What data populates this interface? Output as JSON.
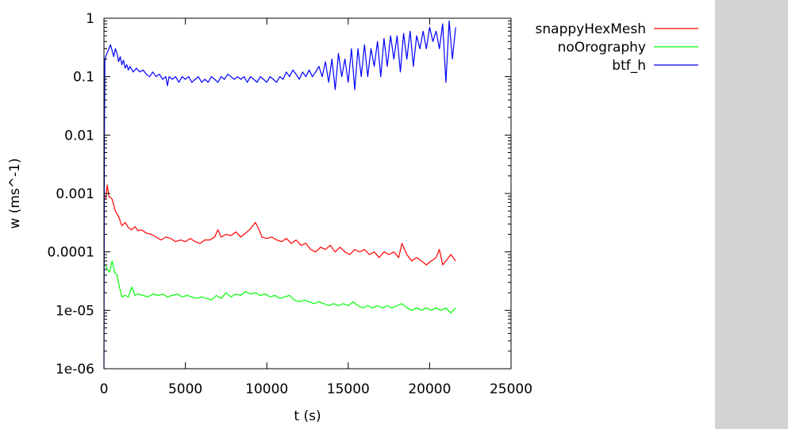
{
  "chart_data": {
    "type": "line",
    "title": "",
    "xlabel": "t (s)",
    "ylabel": "w (ms^-1)",
    "x_range": [
      0,
      25000
    ],
    "y_range": [
      1e-06,
      1
    ],
    "y_scale": "log",
    "grid": false,
    "legend_position": "top-right outside plot",
    "x_ticks": [
      {
        "value": 0,
        "label": "0"
      },
      {
        "value": 5000,
        "label": "5000"
      },
      {
        "value": 10000,
        "label": "10000"
      },
      {
        "value": 15000,
        "label": "15000"
      },
      {
        "value": 20000,
        "label": "20000"
      },
      {
        "value": 25000,
        "label": "25000"
      }
    ],
    "y_ticks": [
      {
        "value": 1,
        "label": "1"
      },
      {
        "value": 0.1,
        "label": "0.1"
      },
      {
        "value": 0.01,
        "label": "0.01"
      },
      {
        "value": 0.001,
        "label": "0.001"
      },
      {
        "value": 0.0001,
        "label": "0.0001"
      },
      {
        "value": 1e-05,
        "label": "1e-05"
      },
      {
        "value": 1e-06,
        "label": "1e-06"
      }
    ],
    "series": [
      {
        "name": "snappyHexMesh",
        "color": "#ff0000",
        "points": [
          [
            100,
            0.0008
          ],
          [
            200,
            0.0014
          ],
          [
            300,
            0.0009
          ],
          [
            500,
            0.0008
          ],
          [
            700,
            0.0005
          ],
          [
            900,
            0.0004
          ],
          [
            1100,
            0.00028
          ],
          [
            1300,
            0.00032
          ],
          [
            1500,
            0.00026
          ],
          [
            1700,
            0.00024
          ],
          [
            1900,
            0.00027
          ],
          [
            2100,
            0.00023
          ],
          [
            2300,
            0.00024
          ],
          [
            2600,
            0.00021
          ],
          [
            2900,
            0.0002
          ],
          [
            3200,
            0.00018
          ],
          [
            3500,
            0.00016
          ],
          [
            3800,
            0.00018
          ],
          [
            4100,
            0.00017
          ],
          [
            4400,
            0.00015
          ],
          [
            4700,
            0.00016
          ],
          [
            5000,
            0.00015
          ],
          [
            5300,
            0.00017
          ],
          [
            5600,
            0.00015
          ],
          [
            5900,
            0.00014
          ],
          [
            6200,
            0.00016
          ],
          [
            6500,
            0.00016
          ],
          [
            6800,
            0.00018
          ],
          [
            7000,
            0.00024
          ],
          [
            7200,
            0.00018
          ],
          [
            7500,
            0.0002
          ],
          [
            7800,
            0.00019
          ],
          [
            8100,
            0.00022
          ],
          [
            8400,
            0.00018
          ],
          [
            8700,
            0.00021
          ],
          [
            9000,
            0.00025
          ],
          [
            9300,
            0.00032
          ],
          [
            9500,
            0.00025
          ],
          [
            9700,
            0.00018
          ],
          [
            10000,
            0.00017
          ],
          [
            10300,
            0.00018
          ],
          [
            10600,
            0.00016
          ],
          [
            10900,
            0.00015
          ],
          [
            11200,
            0.00017
          ],
          [
            11500,
            0.00014
          ],
          [
            11800,
            0.00016
          ],
          [
            12100,
            0.00013
          ],
          [
            12400,
            0.00014
          ],
          [
            12700,
            0.00011
          ],
          [
            13000,
            0.0001
          ],
          [
            13300,
            0.00012
          ],
          [
            13600,
            0.00011
          ],
          [
            13900,
            0.00013
          ],
          [
            14200,
            0.0001
          ],
          [
            14500,
            0.00012
          ],
          [
            14800,
            0.0001
          ],
          [
            15100,
            9e-05
          ],
          [
            15400,
            0.00011
          ],
          [
            15700,
            0.0001
          ],
          [
            16000,
            0.00011
          ],
          [
            16300,
            9e-05
          ],
          [
            16600,
            0.0001
          ],
          [
            16900,
            8e-05
          ],
          [
            17200,
            0.0001
          ],
          [
            17500,
            9e-05
          ],
          [
            17800,
            0.0001
          ],
          [
            18100,
            8e-05
          ],
          [
            18300,
            0.00014
          ],
          [
            18600,
            9e-05
          ],
          [
            18900,
            7e-05
          ],
          [
            19200,
            8e-05
          ],
          [
            19500,
            7e-05
          ],
          [
            19800,
            6e-05
          ],
          [
            20100,
            7e-05
          ],
          [
            20400,
            8e-05
          ],
          [
            20600,
            0.00011
          ],
          [
            20800,
            6e-05
          ],
          [
            21000,
            7e-05
          ],
          [
            21300,
            9e-05
          ],
          [
            21600,
            7e-05
          ]
        ]
      },
      {
        "name": "noOrography",
        "color": "#00ff00",
        "points": [
          [
            100,
            6e-05
          ],
          [
            200,
            5e-05
          ],
          [
            350,
            4.5e-05
          ],
          [
            500,
            7e-05
          ],
          [
            650,
            4.5e-05
          ],
          [
            800,
            4e-05
          ],
          [
            950,
            2.5e-05
          ],
          [
            1100,
            1.7e-05
          ],
          [
            1300,
            1.8e-05
          ],
          [
            1500,
            1.7e-05
          ],
          [
            1700,
            2.5e-05
          ],
          [
            1900,
            1.8e-05
          ],
          [
            2100,
            1.9e-05
          ],
          [
            2400,
            1.8e-05
          ],
          [
            2700,
            1.7e-05
          ],
          [
            3000,
            1.9e-05
          ],
          [
            3300,
            1.8e-05
          ],
          [
            3600,
            1.9e-05
          ],
          [
            3900,
            1.7e-05
          ],
          [
            4200,
            1.8e-05
          ],
          [
            4500,
            1.9e-05
          ],
          [
            4800,
            1.7e-05
          ],
          [
            5100,
            1.8e-05
          ],
          [
            5400,
            1.7e-05
          ],
          [
            5700,
            1.6e-05
          ],
          [
            6000,
            1.7e-05
          ],
          [
            6300,
            1.6e-05
          ],
          [
            6600,
            1.5e-05
          ],
          [
            6900,
            1.8e-05
          ],
          [
            7200,
            1.6e-05
          ],
          [
            7500,
            2e-05
          ],
          [
            7800,
            1.7e-05
          ],
          [
            8100,
            1.9e-05
          ],
          [
            8400,
            1.8e-05
          ],
          [
            8700,
            2.1e-05
          ],
          [
            9000,
            1.9e-05
          ],
          [
            9300,
            2e-05
          ],
          [
            9600,
            1.8e-05
          ],
          [
            9900,
            1.9e-05
          ],
          [
            10200,
            1.7e-05
          ],
          [
            10500,
            1.8e-05
          ],
          [
            10800,
            1.6e-05
          ],
          [
            11100,
            1.7e-05
          ],
          [
            11400,
            1.8e-05
          ],
          [
            11700,
            1.5e-05
          ],
          [
            12000,
            1.4e-05
          ],
          [
            12300,
            1.5e-05
          ],
          [
            12600,
            1.4e-05
          ],
          [
            12900,
            1.3e-05
          ],
          [
            13200,
            1.4e-05
          ],
          [
            13500,
            1.3e-05
          ],
          [
            13800,
            1.2e-05
          ],
          [
            14100,
            1.3e-05
          ],
          [
            14400,
            1.2e-05
          ],
          [
            14700,
            1.3e-05
          ],
          [
            15000,
            1.2e-05
          ],
          [
            15300,
            1.4e-05
          ],
          [
            15600,
            1.2e-05
          ],
          [
            15900,
            1.1e-05
          ],
          [
            16200,
            1.2e-05
          ],
          [
            16500,
            1.1e-05
          ],
          [
            16800,
            1.2e-05
          ],
          [
            17100,
            1.1e-05
          ],
          [
            17400,
            1.2e-05
          ],
          [
            17700,
            1.1e-05
          ],
          [
            18000,
            1.2e-05
          ],
          [
            18300,
            1.3e-05
          ],
          [
            18600,
            1.1e-05
          ],
          [
            18900,
            1e-05
          ],
          [
            19200,
            1.1e-05
          ],
          [
            19500,
            1e-05
          ],
          [
            19800,
            1.1e-05
          ],
          [
            20100,
            1e-05
          ],
          [
            20400,
            1.1e-05
          ],
          [
            20700,
            1e-05
          ],
          [
            21000,
            1.1e-05
          ],
          [
            21300,
            9e-06
          ],
          [
            21600,
            1.1e-05
          ]
        ]
      },
      {
        "name": "btf_h",
        "color": "#0000ff",
        "points": [
          [
            0,
            1e-06
          ],
          [
            30,
            0.01
          ],
          [
            60,
            0.2
          ],
          [
            100,
            0.22
          ],
          [
            300,
            0.3
          ],
          [
            400,
            0.35
          ],
          [
            500,
            0.28
          ],
          [
            600,
            0.22
          ],
          [
            700,
            0.3
          ],
          [
            800,
            0.25
          ],
          [
            900,
            0.18
          ],
          [
            1000,
            0.22
          ],
          [
            1100,
            0.16
          ],
          [
            1200,
            0.19
          ],
          [
            1300,
            0.14
          ],
          [
            1400,
            0.16
          ],
          [
            1500,
            0.13
          ],
          [
            1600,
            0.15
          ],
          [
            1800,
            0.12
          ],
          [
            2000,
            0.14
          ],
          [
            2200,
            0.12
          ],
          [
            2400,
            0.13
          ],
          [
            2600,
            0.11
          ],
          [
            2800,
            0.1
          ],
          [
            3000,
            0.12
          ],
          [
            3200,
            0.1
          ],
          [
            3400,
            0.11
          ],
          [
            3600,
            0.09
          ],
          [
            3800,
            0.1
          ],
          [
            3900,
            0.07
          ],
          [
            4000,
            0.1
          ],
          [
            4200,
            0.09
          ],
          [
            4400,
            0.1
          ],
          [
            4600,
            0.08
          ],
          [
            4800,
            0.1
          ],
          [
            5000,
            0.09
          ],
          [
            5200,
            0.1
          ],
          [
            5400,
            0.08
          ],
          [
            5600,
            0.09
          ],
          [
            5800,
            0.1
          ],
          [
            6000,
            0.08
          ],
          [
            6200,
            0.09
          ],
          [
            6400,
            0.08
          ],
          [
            6600,
            0.1
          ],
          [
            6800,
            0.09
          ],
          [
            7000,
            0.08
          ],
          [
            7200,
            0.1
          ],
          [
            7400,
            0.09
          ],
          [
            7600,
            0.11
          ],
          [
            7800,
            0.1
          ],
          [
            8000,
            0.09
          ],
          [
            8200,
            0.1
          ],
          [
            8400,
            0.09
          ],
          [
            8600,
            0.1
          ],
          [
            8800,
            0.08
          ],
          [
            9000,
            0.1
          ],
          [
            9200,
            0.09
          ],
          [
            9400,
            0.08
          ],
          [
            9600,
            0.1
          ],
          [
            9800,
            0.09
          ],
          [
            10000,
            0.08
          ],
          [
            10200,
            0.1
          ],
          [
            10400,
            0.09
          ],
          [
            10600,
            0.08
          ],
          [
            10800,
            0.1
          ],
          [
            11000,
            0.09
          ],
          [
            11200,
            0.12
          ],
          [
            11400,
            0.1
          ],
          [
            11600,
            0.13
          ],
          [
            11800,
            0.11
          ],
          [
            12000,
            0.09
          ],
          [
            12200,
            0.12
          ],
          [
            12400,
            0.1
          ],
          [
            12600,
            0.13
          ],
          [
            12800,
            0.1
          ],
          [
            13000,
            0.12
          ],
          [
            13200,
            0.15
          ],
          [
            13400,
            0.1
          ],
          [
            13600,
            0.18
          ],
          [
            13800,
            0.08
          ],
          [
            14000,
            0.2
          ],
          [
            14200,
            0.06
          ],
          [
            14400,
            0.25
          ],
          [
            14600,
            0.1
          ],
          [
            14800,
            0.2
          ],
          [
            15000,
            0.08
          ],
          [
            15200,
            0.3
          ],
          [
            15400,
            0.06
          ],
          [
            15600,
            0.3
          ],
          [
            15800,
            0.1
          ],
          [
            16000,
            0.35
          ],
          [
            16200,
            0.1
          ],
          [
            16400,
            0.3
          ],
          [
            16600,
            0.15
          ],
          [
            16800,
            0.4
          ],
          [
            17000,
            0.1
          ],
          [
            17200,
            0.45
          ],
          [
            17400,
            0.15
          ],
          [
            17600,
            0.5
          ],
          [
            17800,
            0.2
          ],
          [
            18000,
            0.5
          ],
          [
            18200,
            0.12
          ],
          [
            18400,
            0.55
          ],
          [
            18600,
            0.2
          ],
          [
            18800,
            0.6
          ],
          [
            19000,
            0.15
          ],
          [
            19200,
            0.5
          ],
          [
            19400,
            0.3
          ],
          [
            19600,
            0.6
          ],
          [
            19800,
            0.3
          ],
          [
            20000,
            0.7
          ],
          [
            20200,
            0.4
          ],
          [
            20400,
            0.6
          ],
          [
            20600,
            0.3
          ],
          [
            20800,
            0.8
          ],
          [
            21000,
            0.08
          ],
          [
            21200,
            0.9
          ],
          [
            21400,
            0.2
          ],
          [
            21600,
            0.7
          ]
        ]
      }
    ]
  }
}
